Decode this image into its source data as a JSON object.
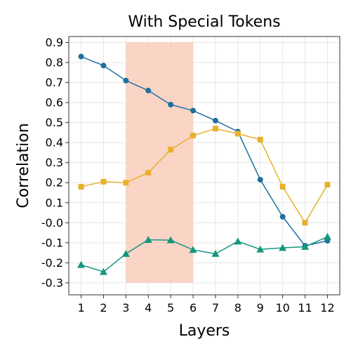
{
  "chart_data": {
    "type": "line",
    "title": "With Special Tokens",
    "xlabel": "Layers",
    "ylabel": "Correlation",
    "x": [
      1,
      2,
      3,
      4,
      5,
      6,
      7,
      8,
      9,
      10,
      11,
      12
    ],
    "x_tick_labels": [
      "1",
      "2",
      "3",
      "4",
      "5",
      "6",
      "7",
      "8",
      "9",
      "10",
      "11",
      "12"
    ],
    "y_ticks": [
      0.9,
      0.8,
      0.7,
      0.6,
      0.5,
      0.4,
      0.3,
      0.2,
      0.1,
      0.0,
      -0.1,
      -0.2,
      -0.3
    ],
    "y_tick_labels": [
      "0.9",
      "0.8",
      "0.7",
      "0.6",
      "0.5",
      "0.4",
      "0.3",
      "0.2",
      "0.1",
      "-0.0",
      "-0.1",
      "-0.2",
      "-0.3"
    ],
    "xlim": [
      0.45,
      12.55
    ],
    "ylim": [
      -0.36,
      0.93
    ],
    "grid": true,
    "highlight_region": {
      "x": [
        3,
        6
      ],
      "y": [
        -0.3,
        0.9
      ],
      "color": "#f9cdbb"
    },
    "series": [
      {
        "marker": "circle",
        "color": "#1f6f9f",
        "values": [
          0.83,
          0.785,
          0.71,
          0.66,
          0.59,
          0.56,
          0.51,
          0.455,
          0.215,
          0.03,
          -0.115,
          -0.09
        ]
      },
      {
        "marker": "square",
        "color": "#e8b02c",
        "values": [
          0.18,
          0.205,
          0.2,
          0.25,
          0.365,
          0.435,
          0.47,
          0.445,
          0.415,
          0.18,
          0.0,
          0.19
        ]
      },
      {
        "marker": "triangle",
        "color": "#15967e",
        "values": [
          -0.21,
          -0.245,
          -0.155,
          -0.085,
          -0.087,
          -0.135,
          -0.155,
          -0.093,
          -0.133,
          -0.125,
          -0.12,
          -0.07
        ]
      }
    ]
  }
}
